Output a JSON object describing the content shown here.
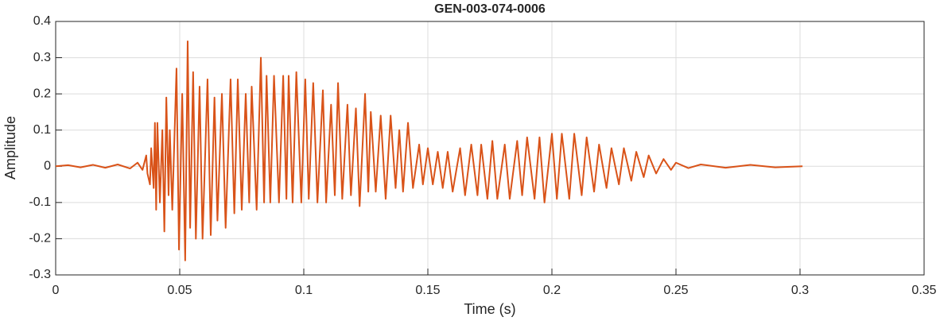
{
  "chart_data": {
    "type": "line",
    "title": "GEN-003-074-0006",
    "x_label": "Time (s)",
    "y_label": "Amplitude",
    "xlim": [
      0,
      0.35
    ],
    "xticks": [
      0,
      0.05,
      0.1,
      0.15,
      0.2,
      0.25,
      0.3,
      0.35
    ],
    "ylim": [
      -0.3,
      0.4
    ],
    "yticks": [
      -0.3,
      -0.2,
      -0.1,
      0,
      0.1,
      0.2,
      0.3,
      0.4
    ],
    "grid": true,
    "series": [
      {
        "color": "#d95319",
        "x": [
          0,
          0.005,
          0.01,
          0.015,
          0.02,
          0.025,
          0.03,
          0.033,
          0.035,
          0.0365,
          0.037,
          0.038,
          0.0385,
          0.0395,
          0.04,
          0.0405,
          0.041,
          0.042,
          0.043,
          0.0438,
          0.0446,
          0.0455,
          0.046,
          0.047,
          0.0487,
          0.0497,
          0.051,
          0.0522,
          0.0532,
          0.0542,
          0.0554,
          0.0565,
          0.058,
          0.0592,
          0.0612,
          0.0625,
          0.064,
          0.0652,
          0.067,
          0.0685,
          0.0705,
          0.072,
          0.0734,
          0.075,
          0.0766,
          0.078,
          0.079,
          0.081,
          0.0827,
          0.084,
          0.085,
          0.0865,
          0.088,
          0.09,
          0.0917,
          0.093,
          0.0939,
          0.0955,
          0.097,
          0.099,
          0.1006,
          0.102,
          0.1038,
          0.1055,
          0.1077,
          0.109,
          0.111,
          0.1125,
          0.1138,
          0.1155,
          0.1176,
          0.119,
          0.121,
          0.1225,
          0.1247,
          0.126,
          0.127,
          0.129,
          0.131,
          0.133,
          0.135,
          0.137,
          0.1385,
          0.14,
          0.142,
          0.144,
          0.1465,
          0.148,
          0.15,
          0.152,
          0.154,
          0.156,
          0.158,
          0.16,
          0.163,
          0.165,
          0.1675,
          0.17,
          0.1715,
          0.174,
          0.176,
          0.178,
          0.181,
          0.183,
          0.186,
          0.188,
          0.19,
          0.193,
          0.195,
          0.197,
          0.2,
          0.202,
          0.204,
          0.207,
          0.209,
          0.212,
          0.214,
          0.217,
          0.219,
          0.222,
          0.224,
          0.227,
          0.229,
          0.232,
          0.234,
          0.237,
          0.239,
          0.242,
          0.245,
          0.248,
          0.25,
          0.255,
          0.26,
          0.27,
          0.28,
          0.29,
          0.301
        ],
        "values": [
          0,
          0.003,
          -0.003,
          0.004,
          -0.004,
          0.005,
          -0.006,
          0.01,
          -0.01,
          0.03,
          -0.02,
          -0.05,
          0.05,
          -0.06,
          0.12,
          -0.12,
          0.12,
          -0.1,
          0.1,
          -0.18,
          0.19,
          -0.08,
          0.1,
          -0.12,
          0.27,
          -0.23,
          0.2,
          -0.26,
          0.345,
          -0.17,
          0.26,
          -0.2,
          0.22,
          -0.2,
          0.24,
          -0.19,
          0.19,
          -0.15,
          0.2,
          -0.17,
          0.24,
          -0.13,
          0.24,
          -0.12,
          0.2,
          -0.1,
          0.22,
          -0.12,
          0.3,
          -0.1,
          0.25,
          -0.1,
          0.25,
          -0.1,
          0.25,
          -0.09,
          0.25,
          -0.1,
          0.26,
          -0.1,
          0.24,
          -0.09,
          0.23,
          -0.1,
          0.21,
          -0.1,
          0.17,
          -0.08,
          0.23,
          -0.09,
          0.17,
          -0.08,
          0.16,
          -0.11,
          0.2,
          -0.07,
          0.15,
          -0.07,
          0.14,
          -0.09,
          0.14,
          -0.06,
          0.1,
          -0.07,
          0.12,
          -0.06,
          0.06,
          -0.05,
          0.05,
          -0.05,
          0.04,
          -0.06,
          0.04,
          -0.07,
          0.05,
          -0.08,
          0.06,
          -0.08,
          0.06,
          -0.09,
          0.07,
          -0.09,
          0.06,
          -0.09,
          0.07,
          -0.08,
          0.08,
          -0.09,
          0.08,
          -0.1,
          0.09,
          -0.09,
          0.09,
          -0.09,
          0.09,
          -0.08,
          0.08,
          -0.07,
          0.06,
          -0.06,
          0.05,
          -0.05,
          0.05,
          -0.04,
          0.04,
          -0.03,
          0.03,
          -0.02,
          0.02,
          -0.01,
          0.01,
          -0.005,
          0.005,
          -0.004,
          0.004,
          -0.003,
          0
        ]
      }
    ]
  }
}
